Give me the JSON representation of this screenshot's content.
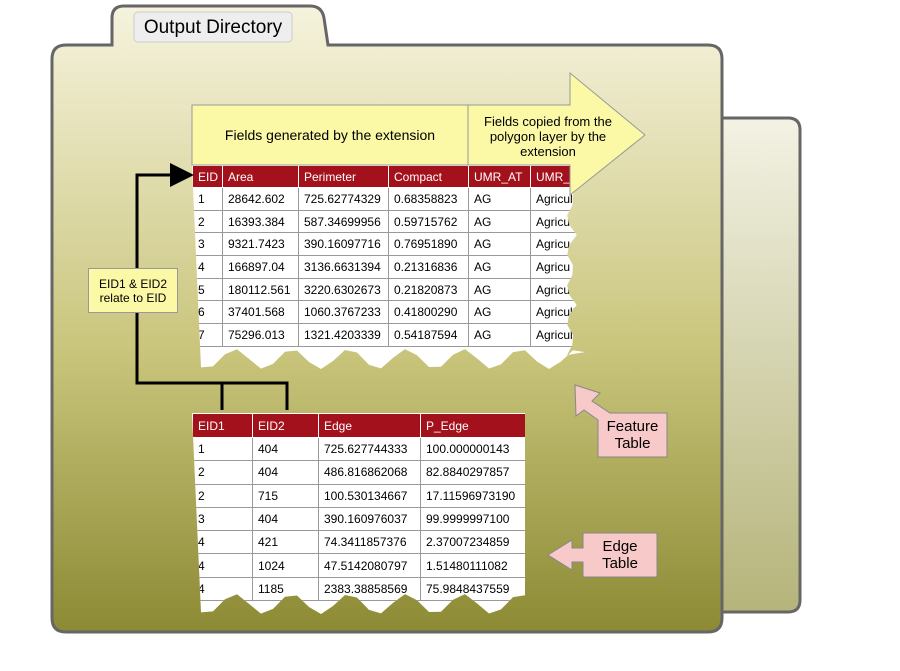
{
  "tab": {
    "title": "Output Directory"
  },
  "feature_table": {
    "header_left": "Fields generated by the extension",
    "header_right": "Fields copied from the polygon layer by the extension",
    "columns": [
      "EID",
      "Area",
      "Perimeter",
      "Compact",
      "UMR_AT",
      "UMR_"
    ],
    "rows": [
      [
        "1",
        "28642.602",
        "725.62774329",
        "0.68358823",
        "AG",
        "Agricultu"
      ],
      [
        "2",
        "16393.384",
        "587.34699956",
        "0.59715762",
        "AG",
        "Agricultu"
      ],
      [
        "3",
        "9321.7423",
        "390.16097716",
        "0.76951890",
        "AG",
        "Agricu"
      ],
      [
        "4",
        "166897.04",
        "3136.6631394",
        "0.21316836",
        "AG",
        "Agricu"
      ],
      [
        "5",
        "180112.561",
        "3220.6302673",
        "0.21820873",
        "AG",
        "Agricultu"
      ],
      [
        "6",
        "37401.568",
        "1060.3767233",
        "0.41800290",
        "AG",
        "Agricultu"
      ],
      [
        "7",
        "75296.013",
        "1321.4203339",
        "0.54187594",
        "AG",
        "Agricultu"
      ]
    ]
  },
  "edge_table": {
    "columns": [
      "EID1",
      "EID2",
      "Edge",
      "P_Edge"
    ],
    "rows": [
      [
        "1",
        "404",
        "725.627744333",
        "100.000000143"
      ],
      [
        "2",
        "404",
        "486.816862068",
        "82.8840297857"
      ],
      [
        "2",
        "715",
        "100.530134667",
        "17.11596973190"
      ],
      [
        "3",
        "404",
        "390.160976037",
        "99.9999997100"
      ],
      [
        "4",
        "421",
        "74.3411857376",
        "2.37007234859"
      ],
      [
        "4",
        "1024",
        "47.5142080797",
        "1.51480111082"
      ],
      [
        "4",
        "1185",
        "2383.38858569",
        "75.9848437559"
      ]
    ]
  },
  "callouts": {
    "relation": "EID1 & EID2 relate to EID",
    "feature": "Feature Table",
    "edge": "Edge Table"
  }
}
